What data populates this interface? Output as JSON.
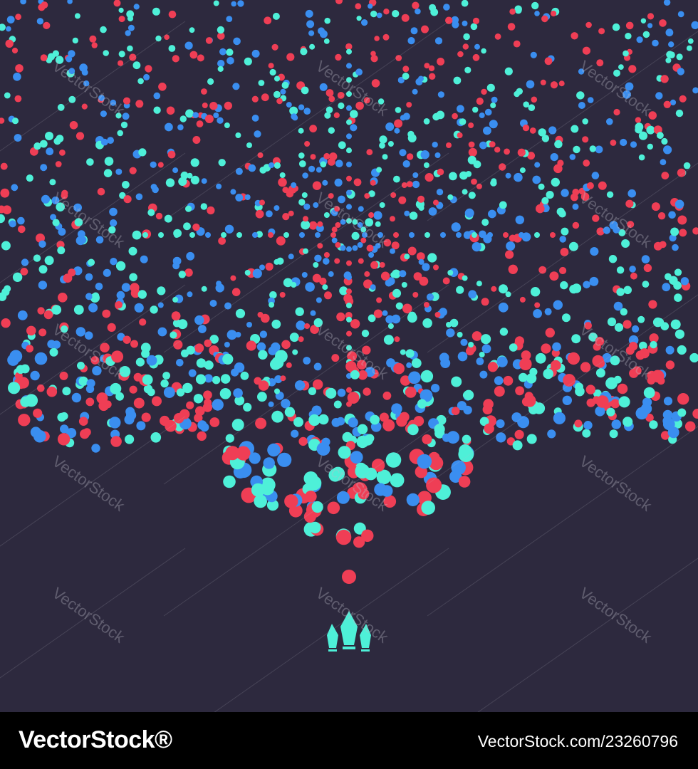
{
  "watermark": "VectorStock",
  "footer": {
    "brand": "VectorStock®",
    "url": "VectorStock.com/23260796"
  }
}
